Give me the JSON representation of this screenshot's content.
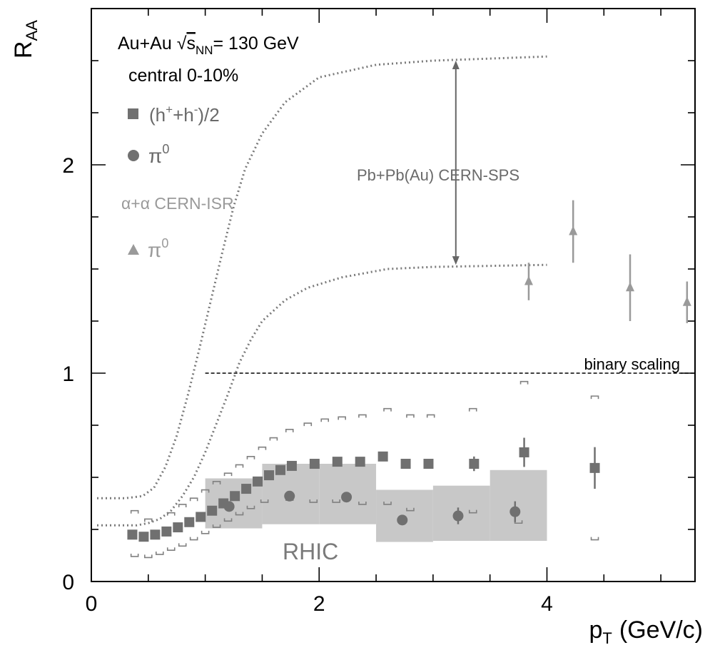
{
  "chart_data": {
    "type": "scatter",
    "title": "",
    "xlabel": {
      "main": "p",
      "sub": "T",
      "units": "(GeV/c)"
    },
    "ylabel": {
      "main": "R",
      "sub": "AA"
    },
    "xlim": [
      0,
      5.3
    ],
    "ylim": [
      0,
      2.75
    ],
    "xticks": [
      0,
      2,
      4
    ],
    "yticks": [
      0,
      1,
      2
    ],
    "xtick_labels": [
      "0",
      "2",
      "4"
    ],
    "ytick_labels": [
      "0",
      "1",
      "2"
    ],
    "x_minor_step": 0.5,
    "y_minor_step": 0.25,
    "grid": false,
    "legend": {
      "placement": "top-left",
      "system_line": {
        "prefix": "Au+Au ",
        "sqrt": "√",
        "s": "s",
        "sub": "NN",
        "suffix": "= 130 GeV"
      },
      "centrality": "central 0-10%",
      "hadrons": {
        "prefix": "(h",
        "sup1": "+",
        "mid": "+h",
        "sup2": "-",
        "suffix": ")/2"
      },
      "pi0": {
        "base": "π",
        "sup": "0"
      },
      "isr_label": "α+α CERN-ISR",
      "isr_pi0": {
        "base": "π",
        "sup": "0"
      }
    },
    "annotations": {
      "sps": "Pb+Pb(Au) CERN-SPS",
      "binary": "binary scaling",
      "rhic": "RHIC"
    },
    "binary_scaling": {
      "x_start": 1.0,
      "x_end": 5.3,
      "y": 1.0
    },
    "sps_arrow": {
      "x": 3.2,
      "y_top": 2.5,
      "y_bottom": 1.52
    },
    "colors": {
      "hadrons": "#707070",
      "pi0": "#707070",
      "isr": "#9a9a9a",
      "band": "#c8c8c8",
      "sps_curve": "#7a7a7a",
      "bracket": "#808080",
      "text": "#000000",
      "annotation": "#6a6a6a"
    },
    "series": [
      {
        "name": "(h++h-)/2",
        "marker": "square",
        "points": [
          {
            "x": 0.36,
            "y": 0.225
          },
          {
            "x": 0.46,
            "y": 0.215
          },
          {
            "x": 0.56,
            "y": 0.225
          },
          {
            "x": 0.66,
            "y": 0.24
          },
          {
            "x": 0.76,
            "y": 0.26
          },
          {
            "x": 0.86,
            "y": 0.285
          },
          {
            "x": 0.96,
            "y": 0.31
          },
          {
            "x": 1.06,
            "y": 0.34
          },
          {
            "x": 1.16,
            "y": 0.375
          },
          {
            "x": 1.26,
            "y": 0.41
          },
          {
            "x": 1.36,
            "y": 0.445
          },
          {
            "x": 1.46,
            "y": 0.48
          },
          {
            "x": 1.56,
            "y": 0.51
          },
          {
            "x": 1.66,
            "y": 0.535
          },
          {
            "x": 1.76,
            "y": 0.555
          },
          {
            "x": 1.96,
            "y": 0.565
          },
          {
            "x": 2.16,
            "y": 0.575
          },
          {
            "x": 2.36,
            "y": 0.575
          },
          {
            "x": 2.56,
            "y": 0.6
          },
          {
            "x": 2.76,
            "y": 0.565
          },
          {
            "x": 2.96,
            "y": 0.565
          },
          {
            "x": 3.36,
            "y": 0.565,
            "err": 0.035
          },
          {
            "x": 3.8,
            "y": 0.62,
            "err": 0.07
          },
          {
            "x": 4.42,
            "y": 0.545,
            "err": 0.1
          }
        ]
      },
      {
        "name": "π0",
        "marker": "circle",
        "points": [
          {
            "x": 1.21,
            "y": 0.36
          },
          {
            "x": 1.74,
            "y": 0.41
          },
          {
            "x": 2.24,
            "y": 0.405
          },
          {
            "x": 2.73,
            "y": 0.295
          },
          {
            "x": 3.22,
            "y": 0.315,
            "err": 0.04
          },
          {
            "x": 3.72,
            "y": 0.335,
            "err": 0.05
          }
        ]
      },
      {
        "name": "α+α CERN-ISR π0",
        "marker": "triangle",
        "points": [
          {
            "x": 3.84,
            "y": 1.44,
            "err": 0.09
          },
          {
            "x": 4.23,
            "y": 1.68,
            "err": 0.15
          },
          {
            "x": 4.73,
            "y": 1.41,
            "err": 0.16
          },
          {
            "x": 5.23,
            "y": 1.34,
            "err": 0.1
          }
        ]
      }
    ],
    "systematic_boxes": [
      {
        "x0": 1.0,
        "x1": 1.5,
        "y0": 0.255,
        "y1": 0.495
      },
      {
        "x0": 1.5,
        "x1": 2.0,
        "y0": 0.275,
        "y1": 0.565
      },
      {
        "x0": 2.0,
        "x1": 2.5,
        "y0": 0.275,
        "y1": 0.565
      },
      {
        "x0": 2.5,
        "x1": 3.0,
        "y0": 0.19,
        "y1": 0.44
      },
      {
        "x0": 3.0,
        "x1": 3.5,
        "y0": 0.195,
        "y1": 0.46
      },
      {
        "x0": 3.5,
        "x1": 4.0,
        "y0": 0.195,
        "y1": 0.535
      }
    ],
    "error_brackets": {
      "upper": [
        {
          "x": 0.38,
          "y": 0.34
        },
        {
          "x": 0.5,
          "y": 0.3
        },
        {
          "x": 0.7,
          "y": 0.33
        },
        {
          "x": 0.8,
          "y": 0.37
        },
        {
          "x": 0.9,
          "y": 0.4
        },
        {
          "x": 1.0,
          "y": 0.44
        },
        {
          "x": 1.1,
          "y": 0.48
        },
        {
          "x": 1.2,
          "y": 0.52
        },
        {
          "x": 1.3,
          "y": 0.56
        },
        {
          "x": 1.4,
          "y": 0.6
        },
        {
          "x": 1.5,
          "y": 0.645
        },
        {
          "x": 1.6,
          "y": 0.69
        },
        {
          "x": 1.74,
          "y": 0.73
        },
        {
          "x": 1.9,
          "y": 0.76
        },
        {
          "x": 2.05,
          "y": 0.78
        },
        {
          "x": 2.2,
          "y": 0.79
        },
        {
          "x": 2.38,
          "y": 0.8
        },
        {
          "x": 2.6,
          "y": 0.83
        },
        {
          "x": 2.8,
          "y": 0.8
        },
        {
          "x": 2.98,
          "y": 0.8
        },
        {
          "x": 3.35,
          "y": 0.83
        },
        {
          "x": 3.8,
          "y": 0.96
        },
        {
          "x": 4.42,
          "y": 0.89
        }
      ],
      "lower": [
        {
          "x": 0.38,
          "y": 0.12
        },
        {
          "x": 0.5,
          "y": 0.115
        },
        {
          "x": 0.6,
          "y": 0.13
        },
        {
          "x": 0.7,
          "y": 0.15
        },
        {
          "x": 0.8,
          "y": 0.17
        },
        {
          "x": 0.9,
          "y": 0.2
        },
        {
          "x": 1.0,
          "y": 0.23
        },
        {
          "x": 1.1,
          "y": 0.26
        },
        {
          "x": 1.2,
          "y": 0.29
        },
        {
          "x": 1.3,
          "y": 0.32
        },
        {
          "x": 1.4,
          "y": 0.35
        },
        {
          "x": 1.52,
          "y": 0.38
        },
        {
          "x": 1.74,
          "y": 0.39
        },
        {
          "x": 1.95,
          "y": 0.38
        },
        {
          "x": 2.15,
          "y": 0.38
        },
        {
          "x": 2.38,
          "y": 0.37
        },
        {
          "x": 2.6,
          "y": 0.37
        },
        {
          "x": 2.8,
          "y": 0.34
        },
        {
          "x": 3.35,
          "y": 0.33
        },
        {
          "x": 3.75,
          "y": 0.28
        },
        {
          "x": 4.42,
          "y": 0.2
        }
      ]
    },
    "sps_curves": [
      {
        "points": [
          [
            0.05,
            0.4
          ],
          [
            0.3,
            0.4
          ],
          [
            0.45,
            0.41
          ],
          [
            0.55,
            0.45
          ],
          [
            0.65,
            0.55
          ],
          [
            0.75,
            0.7
          ],
          [
            0.85,
            0.9
          ],
          [
            0.95,
            1.12
          ],
          [
            1.05,
            1.35
          ],
          [
            1.15,
            1.58
          ],
          [
            1.25,
            1.8
          ],
          [
            1.35,
            1.98
          ],
          [
            1.5,
            2.15
          ],
          [
            1.7,
            2.3
          ],
          [
            2.0,
            2.42
          ],
          [
            2.5,
            2.48
          ],
          [
            3.0,
            2.5
          ],
          [
            4.0,
            2.52
          ]
        ]
      },
      {
        "points": [
          [
            0.05,
            0.27
          ],
          [
            0.4,
            0.27
          ],
          [
            0.5,
            0.28
          ],
          [
            0.6,
            0.3
          ],
          [
            0.7,
            0.34
          ],
          [
            0.8,
            0.41
          ],
          [
            0.9,
            0.5
          ],
          [
            1.0,
            0.62
          ],
          [
            1.1,
            0.76
          ],
          [
            1.2,
            0.9
          ],
          [
            1.3,
            1.05
          ],
          [
            1.4,
            1.16
          ],
          [
            1.5,
            1.25
          ],
          [
            1.7,
            1.35
          ],
          [
            1.9,
            1.41
          ],
          [
            2.2,
            1.46
          ],
          [
            2.6,
            1.5
          ],
          [
            3.0,
            1.51
          ],
          [
            4.0,
            1.52
          ]
        ]
      }
    ]
  }
}
